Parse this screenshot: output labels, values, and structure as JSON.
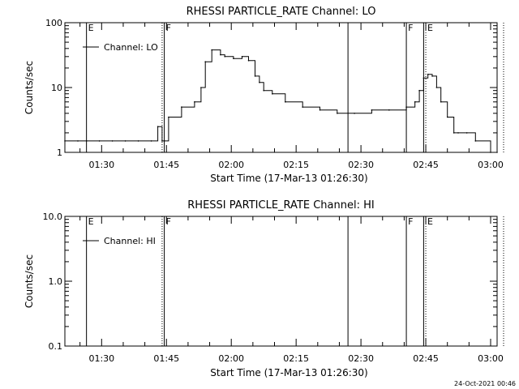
{
  "footer_timestamp": "24-Oct-2021 00:46",
  "chart_data": [
    {
      "type": "line",
      "title": "RHESSI PARTICLE_RATE Channel: LO",
      "xlabel": "Start Time (17-Mar-13 01:26:30)",
      "ylabel": "Counts/sec",
      "yscale": "log",
      "ylim": [
        1,
        100
      ],
      "ytick_labels": [
        "1",
        "10",
        "100"
      ],
      "xlim_minutes_after_start": [
        -5,
        95
      ],
      "xtick_labels": [
        "01:30",
        "01:45",
        "02:00",
        "02:15",
        "02:30",
        "02:45",
        "03:00"
      ],
      "xtick_minutes": [
        3.5,
        18.5,
        33.5,
        48.5,
        63.5,
        78.5,
        93.5
      ],
      "legend": {
        "label": "Channel: LO",
        "position": "top-left"
      },
      "flag_markers": [
        {
          "label": "E",
          "time": "01:26:30",
          "style": "solid"
        },
        {
          "label": "F",
          "time": "01:44:30",
          "style": "solid"
        },
        {
          "label": "",
          "time": "01:44:00",
          "style": "dotted"
        },
        {
          "label": "",
          "time": "02:27:00",
          "style": "solid"
        },
        {
          "label": "F",
          "time": "02:40:30",
          "style": "solid"
        },
        {
          "label": "",
          "time": "02:44:30",
          "style": "solid"
        },
        {
          "label": "E",
          "time": "02:45:00",
          "style": "dotted"
        },
        {
          "label": "",
          "time": "03:03:00",
          "style": "dotted"
        }
      ],
      "series": [
        {
          "name": "Channel: LO",
          "x_minutes_after_start": [
            -5,
            -2,
            0,
            3,
            6,
            9,
            12,
            15,
            16.5,
            17.5,
            18,
            19,
            22,
            25,
            26.5,
            27.5,
            29,
            31,
            32,
            34,
            36,
            37.5,
            39,
            40,
            41,
            43,
            46,
            50,
            54,
            58,
            62,
            66,
            70,
            74,
            76,
            77,
            78,
            79,
            80,
            81,
            82,
            83.5,
            85,
            86,
            88,
            90,
            93.5,
            95
          ],
          "y": [
            1.5,
            1.5,
            1.5,
            1.5,
            1.5,
            1.5,
            1.5,
            1.5,
            2.5,
            1.5,
            1.5,
            3.5,
            5,
            6,
            10,
            25,
            38,
            32,
            30,
            28,
            30,
            26,
            15,
            12,
            9,
            8,
            6,
            5,
            4.5,
            4,
            4,
            4.5,
            4.5,
            5,
            6,
            9,
            14,
            16,
            15,
            10,
            6,
            3.5,
            2,
            2,
            2,
            1.5,
            1,
            1
          ]
        }
      ]
    },
    {
      "type": "line",
      "title": "RHESSI PARTICLE_RATE Channel: HI",
      "xlabel": "Start Time (17-Mar-13 01:26:30)",
      "ylabel": "Counts/sec",
      "yscale": "log",
      "ylim": [
        0.1,
        10
      ],
      "ytick_labels": [
        "0.1",
        "1.0",
        "10.0"
      ],
      "xlim_minutes_after_start": [
        -5,
        95
      ],
      "xtick_labels": [
        "01:30",
        "01:45",
        "02:00",
        "02:15",
        "02:30",
        "02:45",
        "03:00"
      ],
      "xtick_minutes": [
        3.5,
        18.5,
        33.5,
        48.5,
        63.5,
        78.5,
        93.5
      ],
      "legend": {
        "label": "Channel: HI",
        "position": "top-left"
      },
      "flag_markers": [
        {
          "label": "E",
          "time": "01:26:30",
          "style": "solid"
        },
        {
          "label": "F",
          "time": "01:44:30",
          "style": "solid"
        },
        {
          "label": "",
          "time": "01:44:00",
          "style": "dotted"
        },
        {
          "label": "",
          "time": "02:27:00",
          "style": "solid"
        },
        {
          "label": "F",
          "time": "02:40:30",
          "style": "solid"
        },
        {
          "label": "",
          "time": "02:44:30",
          "style": "solid"
        },
        {
          "label": "E",
          "time": "02:45:00",
          "style": "dotted"
        },
        {
          "label": "",
          "time": "03:03:00",
          "style": "dotted"
        }
      ],
      "series": [
        {
          "name": "Channel: HI",
          "x_minutes_after_start": [],
          "y": []
        }
      ]
    }
  ]
}
